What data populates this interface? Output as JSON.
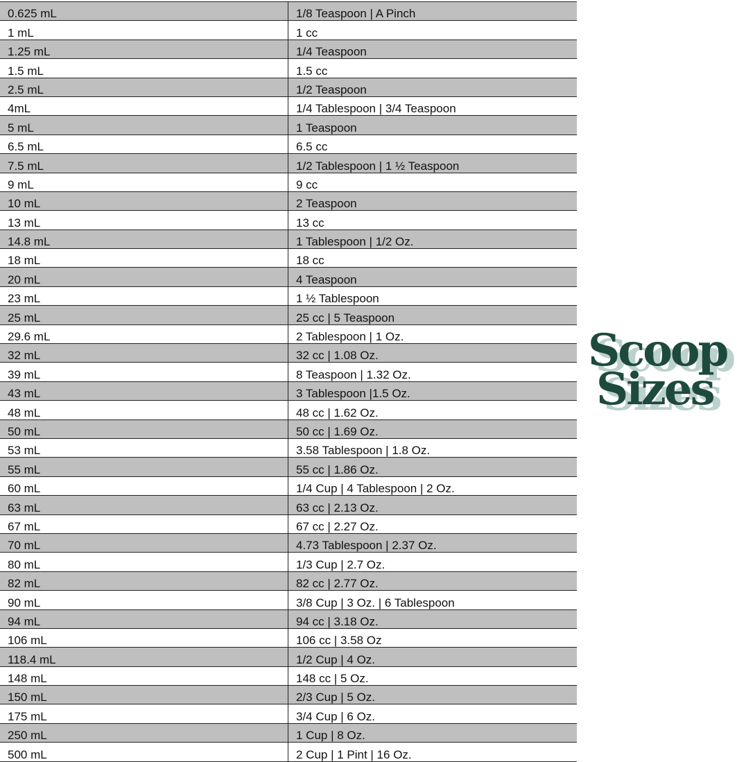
{
  "rows": [
    [
      "0.625 mL",
      "1/8 Teaspoon | A Pinch"
    ],
    [
      "1 mL",
      "1 cc"
    ],
    [
      "1.25 mL",
      "1/4 Teaspoon"
    ],
    [
      "1.5 mL",
      "1.5 cc"
    ],
    [
      "2.5 mL",
      "1/2 Teaspoon"
    ],
    [
      "4mL",
      "1/4 Tablespoon | 3/4 Teaspoon"
    ],
    [
      "5 mL",
      "1 Teaspoon"
    ],
    [
      "6.5 mL",
      "6.5 cc"
    ],
    [
      "7.5 mL",
      "1/2 Tablespoon | 1 ½ Teaspoon"
    ],
    [
      "9 mL",
      "9 cc"
    ],
    [
      "10 mL",
      "2 Teaspoon"
    ],
    [
      "13 mL",
      "13 cc"
    ],
    [
      "14.8 mL",
      "1 Tablespoon | 1/2 Oz."
    ],
    [
      "18 mL",
      "18 cc"
    ],
    [
      "20 mL",
      "4 Teaspoon"
    ],
    [
      "23 mL",
      "1 ½ Tablespoon"
    ],
    [
      "25 mL",
      "25 cc | 5 Teaspoon"
    ],
    [
      "29.6 mL",
      "2 Tablespoon | 1 Oz."
    ],
    [
      "32 mL",
      "32 cc | 1.08 Oz."
    ],
    [
      "39 mL",
      "8 Teaspoon | 1.32 Oz."
    ],
    [
      "43 mL",
      "3 Tablespoon |1.5 Oz."
    ],
    [
      "48 mL",
      "48 cc | 1.62 Oz."
    ],
    [
      "50 mL",
      "50 cc | 1.69 Oz."
    ],
    [
      "53 mL",
      "3.58 Tablespoon | 1.8 Oz."
    ],
    [
      "55 mL",
      "55 cc | 1.86 Oz."
    ],
    [
      "60 mL",
      "1/4 Cup | 4 Tablespoon | 2 Oz."
    ],
    [
      "63 mL",
      "63 cc | 2.13 Oz."
    ],
    [
      "67 mL",
      "67 cc | 2.27 Oz."
    ],
    [
      "70 mL",
      "4.73 Tablespoon | 2.37 Oz."
    ],
    [
      "80 mL",
      "1/3 Cup | 2.7 Oz."
    ],
    [
      "82 mL",
      "82 cc | 2.77 Oz."
    ],
    [
      "90 mL",
      "3/8 Cup | 3 Oz. | 6 Tablespoon"
    ],
    [
      "94 mL",
      "94 cc | 3.18 Oz."
    ],
    [
      "106 mL",
      "106 cc | 3.58 Oz"
    ],
    [
      "118.4 mL",
      "1/2 Cup | 4 Oz."
    ],
    [
      "148 mL",
      "148 cc | 5 Oz."
    ],
    [
      "150 mL",
      "2/3 Cup | 5 Oz."
    ],
    [
      "175 mL",
      "3/4 Cup | 6 Oz."
    ],
    [
      "250 mL",
      "1 Cup | 8 Oz."
    ],
    [
      "500 mL",
      "2 Cup | 1 Pint | 16 Oz."
    ]
  ],
  "logo": {
    "line1": "Scoop",
    "line2": "Sizes"
  },
  "colors": {
    "logo": "#1d4a3c",
    "logo_shadow": "#bcd1cd",
    "row_shade": "#bfbfbf"
  }
}
